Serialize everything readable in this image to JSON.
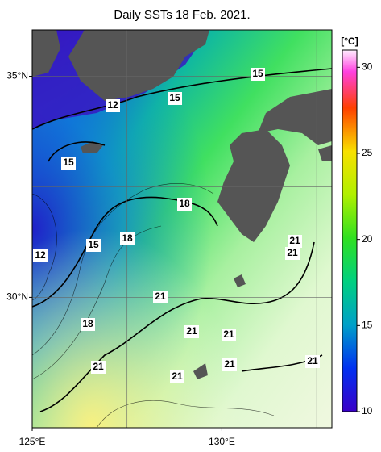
{
  "title": "Daily SSTs 18 Feb. 2021.",
  "colorbar": {
    "unit": "[°C]",
    "range": [
      10,
      31
    ],
    "ticks": [
      10,
      15,
      20,
      25,
      30
    ]
  },
  "lat_range": [
    27.05,
    36.05
  ],
  "lon_range": [
    125,
    132.9
  ],
  "grid_lats": [
    27.5,
    30,
    32.5,
    35
  ],
  "grid_lons": [
    127.5,
    130,
    132.5
  ],
  "lat_labels": [
    {
      "value": 35,
      "label": "35°N"
    },
    {
      "value": 30,
      "label": "30°N"
    }
  ],
  "lon_labels": [
    {
      "value": 125,
      "label": "125°E"
    },
    {
      "value": 130,
      "label": "130°E"
    }
  ],
  "contour_labels": [
    15,
    15,
    12,
    15,
    18,
    15,
    18,
    12,
    21,
    21,
    21,
    18,
    21,
    21,
    21,
    21,
    21,
    21
  ]
}
